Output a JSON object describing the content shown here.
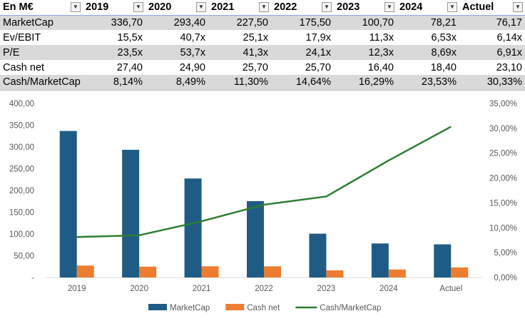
{
  "table": {
    "headers": [
      "En M€",
      "2019",
      "2020",
      "2021",
      "2022",
      "2023",
      "2024",
      "Actuel"
    ],
    "rows": [
      {
        "label": "MarketCap",
        "values": [
          "336,70",
          "293,40",
          "227,50",
          "175,50",
          "100,70",
          "78,21",
          "76,17"
        ]
      },
      {
        "label": "Ev/EBIT",
        "values": [
          "15,5x",
          "40,7x",
          "25,1x",
          "17,9x",
          "11,3x",
          "6,53x",
          "6,14x"
        ]
      },
      {
        "label": "P/E",
        "values": [
          "23,5x",
          "53,7x",
          "41,3x",
          "24,1x",
          "12,3x",
          "8,69x",
          "6,91x"
        ]
      },
      {
        "label": "Cash net",
        "values": [
          "27,40",
          "24,90",
          "25,70",
          "25,70",
          "16,40",
          "18,40",
          "23,10"
        ]
      },
      {
        "label": "Cash/MarketCap",
        "values": [
          "8,14%",
          "8,49%",
          "11,30%",
          "14,64%",
          "16,29%",
          "23,53%",
          "30,33%"
        ]
      }
    ]
  },
  "chart_data": {
    "type": "bar",
    "categories": [
      "2019",
      "2020",
      "2021",
      "2022",
      "2023",
      "2024",
      "Actuel"
    ],
    "series": [
      {
        "name": "MarketCap",
        "type": "bar",
        "axis": "left",
        "color": "#1f5c85",
        "values": [
          336.7,
          293.4,
          227.5,
          175.5,
          100.7,
          78.21,
          76.17
        ]
      },
      {
        "name": "Cash net",
        "type": "bar",
        "axis": "left",
        "color": "#ed7d31",
        "values": [
          27.4,
          24.9,
          25.7,
          25.7,
          16.4,
          18.4,
          23.1
        ]
      },
      {
        "name": "Cash/MarketCap",
        "type": "line",
        "axis": "right",
        "color": "#2e7d32",
        "values": [
          8.14,
          8.49,
          11.3,
          14.64,
          16.29,
          23.53,
          30.33
        ]
      }
    ],
    "y_left": {
      "min": 0,
      "max": 400,
      "ticks": [
        "-",
        "50,00",
        "100,00",
        "150,00",
        "200,00",
        "250,00",
        "300,00",
        "350,00",
        "400,00"
      ]
    },
    "y_right": {
      "min": 0,
      "max": 35,
      "ticks": [
        "0,00%",
        "5,00%",
        "10,00%",
        "15,00%",
        "20,00%",
        "25,00%",
        "30,00%",
        "35,00%"
      ]
    },
    "grid": false,
    "legend": "bottom",
    "title": "",
    "xlabel": "",
    "ylabel": ""
  }
}
